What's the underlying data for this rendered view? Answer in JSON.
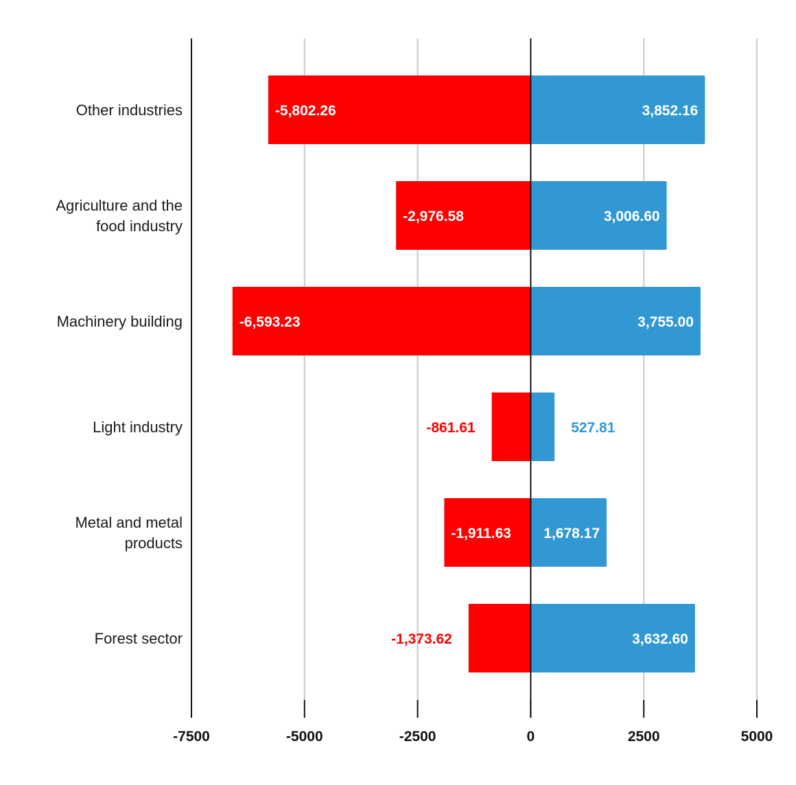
{
  "chart_data": {
    "type": "bar",
    "orientation": "horizontal",
    "stacked": "diverging",
    "title": "",
    "xlabel": "",
    "ylabel": "",
    "categories": [
      "Other industries",
      "Agriculture and the food industry",
      "Machinery building",
      "Light industry",
      "Metal and metal products",
      "Forest sector"
    ],
    "category_label_lines": [
      [
        "Other industries"
      ],
      [
        "Agriculture and the",
        "food industry"
      ],
      [
        "Machinery building"
      ],
      [
        "Light industry"
      ],
      [
        "Metal and metal",
        "products"
      ],
      [
        "Forest sector"
      ]
    ],
    "series": [
      {
        "color": "#ff0000",
        "values": [
          -5802.26,
          -2976.58,
          -6593.23,
          -861.61,
          -1911.63,
          -1373.62
        ],
        "labels": [
          "-5,802.26",
          "-2,976.58",
          "-6,593.23",
          "-861.61",
          "-1,911.63",
          "-1,373.62"
        ]
      },
      {
        "color": "#3198d3",
        "values": [
          3852.16,
          3006.6,
          3755.0,
          527.81,
          1678.17,
          3632.6
        ],
        "labels": [
          "3,852.16",
          "3,006.60",
          "3,755.00",
          "527.81",
          "1,678.17",
          "3,632.60"
        ]
      }
    ],
    "xlim": [
      -7500,
      5000
    ],
    "xticks": [
      -7500,
      -5000,
      -2500,
      0,
      2500,
      5000
    ],
    "xtick_labels": [
      "-7500",
      "-5000",
      "-2500",
      "0",
      "2500",
      "5000"
    ],
    "grid": true,
    "legend": "none"
  }
}
